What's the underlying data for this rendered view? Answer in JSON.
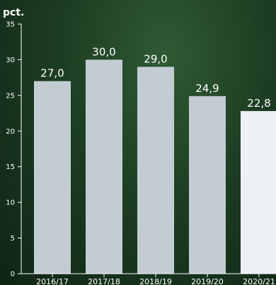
{
  "chart_data": {
    "type": "bar",
    "ylabel": "pct.",
    "ylim": [
      0,
      35
    ],
    "yticks": [
      0,
      5,
      10,
      15,
      20,
      25,
      30,
      35
    ],
    "categories": [
      "2016/17",
      "2017/18",
      "2018/19",
      "2019/20",
      "2020/21"
    ],
    "values": [
      27.0,
      30.0,
      29.0,
      24.9,
      22.8
    ],
    "value_labels": [
      "27,0",
      "30,0",
      "29,0",
      "24,9",
      "22,8"
    ],
    "grid": false,
    "colors": {
      "bar": "#c3ccd3",
      "bar_highlight": "#edf1f4",
      "axis": "#ffffff",
      "text": "#ffffff"
    }
  }
}
